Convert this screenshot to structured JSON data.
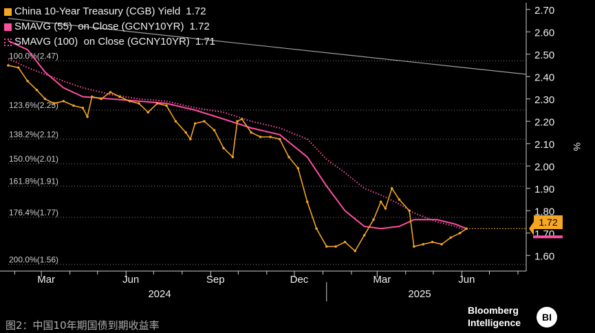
{
  "legend": [
    {
      "label": "China 10-Year Treasury (CGB) Yield",
      "value": "1.72",
      "color": "#f5a623",
      "style": "solid"
    },
    {
      "label": "SMAVG (55)  on Close (GCNY10YR)",
      "value": "1.72",
      "color": "#ff4fa3",
      "style": "solid"
    },
    {
      "label": "SMAVG (100)  on Close (GCNY10YR)",
      "value": "1.71",
      "color": "#ff4fa3",
      "style": "dotted"
    }
  ],
  "last_value_badge": "1.72",
  "caption": "图2：中国10年期国债到期收益率",
  "brand": {
    "line1": "Bloomberg",
    "line2": "Intelligence",
    "logo": "BI"
  },
  "chart_data": {
    "type": "line",
    "title": "",
    "xlabel": "",
    "ylabel": "%",
    "ylim": [
      1.53,
      2.73
    ],
    "y_ticks": [
      "1.60",
      "1.70",
      "1.80",
      "1.90",
      "2.00",
      "2.10",
      "2.20",
      "2.30",
      "2.40",
      "2.50",
      "2.60",
      "2.70"
    ],
    "x_ticks": [
      "Mar",
      "Jun",
      "Sep",
      "Dec",
      "Mar",
      "Jun"
    ],
    "year_labels": [
      "2024",
      "2025"
    ],
    "fib_levels": [
      {
        "label": "100.0%(2.47)",
        "value": 2.47
      },
      {
        "label": "123.6%(2.25)",
        "value": 2.25
      },
      {
        "label": "138.2%(2.12)",
        "value": 2.12
      },
      {
        "label": "150.0%(2.01)",
        "value": 2.01
      },
      {
        "label": "161.8%(1.91)",
        "value": 1.91
      },
      {
        "label": "176.4%(1.77)",
        "value": 1.77
      },
      {
        "label": "200.0%(1.56)",
        "value": 1.56
      }
    ],
    "x_range": [
      "2024-01-25",
      "2025-08-10"
    ],
    "trendline": {
      "start": [
        "2024-01-25",
        2.66
      ],
      "end": [
        "2025-08-10",
        2.41
      ]
    },
    "series": [
      {
        "name": "China 10-Year Treasury (CGB) Yield",
        "color": "#f5a623",
        "points": [
          [
            "2024-01-25",
            2.45
          ],
          [
            "2024-02-05",
            2.44
          ],
          [
            "2024-02-15",
            2.38
          ],
          [
            "2024-02-25",
            2.34
          ],
          [
            "2024-03-05",
            2.3
          ],
          [
            "2024-03-15",
            2.28
          ],
          [
            "2024-03-25",
            2.29
          ],
          [
            "2024-04-05",
            2.27
          ],
          [
            "2024-04-15",
            2.26
          ],
          [
            "2024-04-20",
            2.22
          ],
          [
            "2024-04-25",
            2.31
          ],
          [
            "2024-05-05",
            2.3
          ],
          [
            "2024-05-15",
            2.33
          ],
          [
            "2024-05-25",
            2.31
          ],
          [
            "2024-06-05",
            2.29
          ],
          [
            "2024-06-15",
            2.28
          ],
          [
            "2024-06-25",
            2.24
          ],
          [
            "2024-07-05",
            2.28
          ],
          [
            "2024-07-15",
            2.27
          ],
          [
            "2024-07-25",
            2.2
          ],
          [
            "2024-08-05",
            2.15
          ],
          [
            "2024-08-10",
            2.12
          ],
          [
            "2024-08-15",
            2.19
          ],
          [
            "2024-08-25",
            2.2
          ],
          [
            "2024-09-05",
            2.16
          ],
          [
            "2024-09-15",
            2.08
          ],
          [
            "2024-09-25",
            2.04
          ],
          [
            "2024-09-30",
            2.2
          ],
          [
            "2024-10-05",
            2.21
          ],
          [
            "2024-10-15",
            2.15
          ],
          [
            "2024-10-25",
            2.13
          ],
          [
            "2024-11-05",
            2.13
          ],
          [
            "2024-11-15",
            2.12
          ],
          [
            "2024-11-25",
            2.04
          ],
          [
            "2024-12-05",
            1.99
          ],
          [
            "2024-12-15",
            1.84
          ],
          [
            "2024-12-25",
            1.72
          ],
          [
            "2025-01-05",
            1.64
          ],
          [
            "2025-01-15",
            1.64
          ],
          [
            "2025-01-25",
            1.66
          ],
          [
            "2025-02-05",
            1.62
          ],
          [
            "2025-02-15",
            1.69
          ],
          [
            "2025-02-25",
            1.76
          ],
          [
            "2025-03-05",
            1.84
          ],
          [
            "2025-03-10",
            1.81
          ],
          [
            "2025-03-17",
            1.9
          ],
          [
            "2025-03-25",
            1.85
          ],
          [
            "2025-04-05",
            1.8
          ],
          [
            "2025-04-10",
            1.64
          ],
          [
            "2025-04-20",
            1.65
          ],
          [
            "2025-04-30",
            1.66
          ],
          [
            "2025-05-10",
            1.65
          ],
          [
            "2025-05-20",
            1.68
          ],
          [
            "2025-05-30",
            1.7
          ],
          [
            "2025-06-06",
            1.72
          ]
        ]
      },
      {
        "name": "SMAVG (55)  on Close (GCNY10YR)",
        "color": "#ff4fa3",
        "points": [
          [
            "2024-01-25",
            2.56
          ],
          [
            "2024-02-15",
            2.52
          ],
          [
            "2024-03-05",
            2.42
          ],
          [
            "2024-03-25",
            2.35
          ],
          [
            "2024-04-15",
            2.31
          ],
          [
            "2024-05-15",
            2.3
          ],
          [
            "2024-06-15",
            2.29
          ],
          [
            "2024-07-15",
            2.28
          ],
          [
            "2024-08-15",
            2.25
          ],
          [
            "2024-09-15",
            2.21
          ],
          [
            "2024-10-15",
            2.17
          ],
          [
            "2024-11-15",
            2.14
          ],
          [
            "2024-12-15",
            2.04
          ],
          [
            "2025-01-05",
            1.91
          ],
          [
            "2025-01-25",
            1.8
          ],
          [
            "2025-02-15",
            1.73
          ],
          [
            "2025-03-05",
            1.72
          ],
          [
            "2025-03-25",
            1.73
          ],
          [
            "2025-04-10",
            1.76
          ],
          [
            "2025-05-05",
            1.76
          ],
          [
            "2025-05-25",
            1.74
          ],
          [
            "2025-06-06",
            1.72
          ]
        ]
      },
      {
        "name": "SMAVG (100)  on Close (GCNY10YR)",
        "color": "#ff4fa3",
        "points": [
          [
            "2024-01-25",
            2.48
          ],
          [
            "2024-02-15",
            2.44
          ],
          [
            "2024-03-05",
            2.41
          ],
          [
            "2024-03-25",
            2.38
          ],
          [
            "2024-04-15",
            2.35
          ],
          [
            "2024-05-15",
            2.32
          ],
          [
            "2024-06-15",
            2.3
          ],
          [
            "2024-07-15",
            2.29
          ],
          [
            "2024-08-15",
            2.26
          ],
          [
            "2024-09-15",
            2.24
          ],
          [
            "2024-10-15",
            2.2
          ],
          [
            "2024-11-15",
            2.17
          ],
          [
            "2024-12-15",
            2.12
          ],
          [
            "2025-01-05",
            2.03
          ],
          [
            "2025-01-25",
            1.97
          ],
          [
            "2025-02-15",
            1.9
          ],
          [
            "2025-03-05",
            1.87
          ],
          [
            "2025-03-25",
            1.83
          ],
          [
            "2025-04-10",
            1.79
          ],
          [
            "2025-05-05",
            1.75
          ],
          [
            "2025-05-25",
            1.73
          ],
          [
            "2025-06-06",
            1.71
          ]
        ]
      }
    ]
  }
}
